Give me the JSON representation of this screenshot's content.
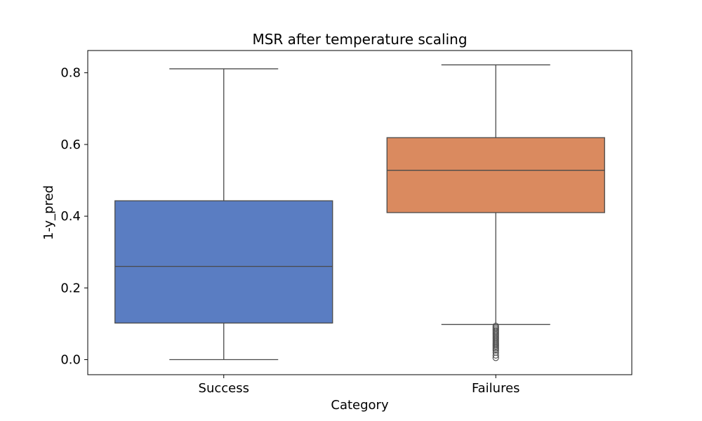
{
  "chart_data": {
    "type": "box",
    "title": "MSR after temperature scaling",
    "xlabel": "Category",
    "ylabel": "1-y_pred",
    "ylim": [
      -0.042,
      0.862
    ],
    "yticks": [
      0.0,
      0.2,
      0.4,
      0.6,
      0.8
    ],
    "ytick_labels": [
      "0.0",
      "0.2",
      "0.4",
      "0.6",
      "0.8"
    ],
    "grid": false,
    "categories": [
      "Success",
      "Failures"
    ],
    "boxes": [
      {
        "category": "Success",
        "color": "#5a7dc2",
        "whisker_low": 0.0,
        "q1": 0.102,
        "median": 0.26,
        "q3": 0.443,
        "whisker_high": 0.811,
        "fliers": []
      },
      {
        "category": "Failures",
        "color": "#da8a5f",
        "whisker_low": 0.098,
        "q1": 0.41,
        "median": 0.528,
        "q3": 0.619,
        "whisker_high": 0.822,
        "fliers": [
          0.094,
          0.09,
          0.086,
          0.082,
          0.078,
          0.074,
          0.07,
          0.066,
          0.062,
          0.058,
          0.054,
          0.05,
          0.046,
          0.042,
          0.038,
          0.034,
          0.03,
          0.026,
          0.02,
          0.012,
          0.005
        ]
      }
    ]
  }
}
